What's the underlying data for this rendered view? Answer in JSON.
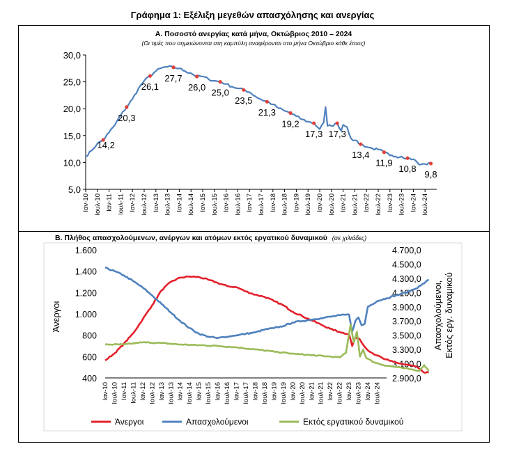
{
  "title": "Γράφημα 1: Εξέλιξη μεγεθών απασχόλησης και ανεργίας",
  "chart_data": [
    {
      "type": "line",
      "title": "Α. Ποσοστό ανεργίας κατά μήνα, Οκτώβριος 2010 – 2024",
      "subtitle": "(Οι τιμές που σημειώνονται στη καμπύλη αναφέρονται στο μήνα Οκτώβριο κάθε έτους)",
      "xlabel": "",
      "ylabel": "",
      "ylim": [
        5,
        30
      ],
      "yticks": [
        "5,0",
        "10,0",
        "15,0",
        "20,0",
        "25,0",
        "30,0"
      ],
      "x_ticks": [
        "Ιαν-10",
        "Ιουλ-10",
        "Ιαν-11",
        "Ιουλ-11",
        "Ιαν-12",
        "Ιουλ-12",
        "Ιαν-13",
        "Ιουλ-13",
        "Ιαν-14",
        "Ιουλ-14",
        "Ιαν-15",
        "Ιουλ-15",
        "Ιαν-16",
        "Ιουλ-16",
        "Ιαν-17",
        "Ιουλ-17",
        "Ιαν-18",
        "Ιουλ-18",
        "Ιαν-19",
        "Ιουλ-19",
        "Ιαν-20",
        "Ιουλ-20",
        "Ιαν-21",
        "Ιουλ-21",
        "Ιαν-22",
        "Ιουλ-22",
        "Ιαν-23",
        "Ιουλ-23",
        "Ιαν-24",
        "Ιουλ-24"
      ],
      "grid": false,
      "legend": "none",
      "series": [
        {
          "color": "#4f81bd",
          "anchors": [
            {
              "x": 0,
              "y": 11.1
            },
            {
              "x": 3,
              "y": 12.2
            },
            {
              "x": 6,
              "y": 13.5
            },
            {
              "x": 9,
              "y": 14.2
            },
            {
              "x": 12,
              "y": 15.6
            },
            {
              "x": 15,
              "y": 17.0
            },
            {
              "x": 18,
              "y": 18.8
            },
            {
              "x": 21,
              "y": 20.3
            },
            {
              "x": 24,
              "y": 21.8
            },
            {
              "x": 27,
              "y": 23.7
            },
            {
              "x": 30,
              "y": 25.2
            },
            {
              "x": 33,
              "y": 26.1
            },
            {
              "x": 36,
              "y": 27.0
            },
            {
              "x": 39,
              "y": 27.6
            },
            {
              "x": 42,
              "y": 27.8
            },
            {
              "x": 45,
              "y": 27.7
            },
            {
              "x": 48,
              "y": 27.5
            },
            {
              "x": 51,
              "y": 27.0
            },
            {
              "x": 54,
              "y": 26.6
            },
            {
              "x": 57,
              "y": 26.0
            },
            {
              "x": 60,
              "y": 26.0
            },
            {
              "x": 63,
              "y": 25.5
            },
            {
              "x": 66,
              "y": 25.2
            },
            {
              "x": 69,
              "y": 25.0
            },
            {
              "x": 72,
              "y": 24.6
            },
            {
              "x": 75,
              "y": 24.1
            },
            {
              "x": 78,
              "y": 23.8
            },
            {
              "x": 81,
              "y": 23.5
            },
            {
              "x": 84,
              "y": 23.1
            },
            {
              "x": 87,
              "y": 22.3
            },
            {
              "x": 90,
              "y": 21.7
            },
            {
              "x": 93,
              "y": 21.3
            },
            {
              "x": 96,
              "y": 20.8
            },
            {
              "x": 99,
              "y": 20.1
            },
            {
              "x": 102,
              "y": 19.6
            },
            {
              "x": 105,
              "y": 19.2
            },
            {
              "x": 108,
              "y": 18.6
            },
            {
              "x": 111,
              "y": 18.0
            },
            {
              "x": 114,
              "y": 17.6
            },
            {
              "x": 117,
              "y": 17.3
            },
            {
              "x": 120,
              "y": 16.2
            },
            {
              "x": 122,
              "y": 17.4
            },
            {
              "x": 123,
              "y": 20.3
            },
            {
              "x": 124,
              "y": 16.8
            },
            {
              "x": 126,
              "y": 16.8
            },
            {
              "x": 129,
              "y": 17.3
            },
            {
              "x": 131,
              "y": 15.9
            },
            {
              "x": 132,
              "y": 17.0
            },
            {
              "x": 134,
              "y": 16.6
            },
            {
              "x": 136,
              "y": 14.5
            },
            {
              "x": 138,
              "y": 14.1
            },
            {
              "x": 141,
              "y": 13.4
            },
            {
              "x": 144,
              "y": 12.9
            },
            {
              "x": 147,
              "y": 12.6
            },
            {
              "x": 150,
              "y": 12.4
            },
            {
              "x": 153,
              "y": 11.9
            },
            {
              "x": 156,
              "y": 11.3
            },
            {
              "x": 159,
              "y": 11.1
            },
            {
              "x": 162,
              "y": 11.1
            },
            {
              "x": 165,
              "y": 10.8
            },
            {
              "x": 168,
              "y": 10.6
            },
            {
              "x": 170,
              "y": 10.0
            },
            {
              "x": 171,
              "y": 9.6
            },
            {
              "x": 174,
              "y": 9.7
            },
            {
              "x": 177,
              "y": 9.8
            }
          ]
        }
      ],
      "annotations": [
        {
          "x": 9,
          "y": 14.2,
          "label": "14,2"
        },
        {
          "x": 21,
          "y": 20.3,
          "label": "20,3"
        },
        {
          "x": 33,
          "y": 26.1,
          "label": "26,1"
        },
        {
          "x": 45,
          "y": 27.7,
          "label": "27,7"
        },
        {
          "x": 57,
          "y": 26.0,
          "label": "26,0"
        },
        {
          "x": 69,
          "y": 25.0,
          "label": "25,0"
        },
        {
          "x": 81,
          "y": 23.5,
          "label": "23,5"
        },
        {
          "x": 93,
          "y": 21.3,
          "label": "21,3"
        },
        {
          "x": 105,
          "y": 19.2,
          "label": "19,2"
        },
        {
          "x": 117,
          "y": 17.3,
          "label": "17,3"
        },
        {
          "x": 129,
          "y": 17.3,
          "label": "17,3"
        },
        {
          "x": 141,
          "y": 13.4,
          "label": "13,4"
        },
        {
          "x": 153,
          "y": 11.9,
          "label": "11,9"
        },
        {
          "x": 165,
          "y": 10.8,
          "label": "10,8"
        },
        {
          "x": 177,
          "y": 9.8,
          "label": "9,8"
        }
      ],
      "marker_color": "#e0403a"
    },
    {
      "type": "line",
      "title": "Β. Πλήθος απασχολούμενων, ανέργων και ατόμων εκτός εργατικού δυναμικού",
      "title_note": "(σε χιλιάδες)",
      "ylabel": "Άνεργοι",
      "y2label": "Απασχολούμενοι, Εκτός εργ. δυναμικού",
      "ylim": [
        400,
        1600
      ],
      "y2lim": [
        2900,
        4700
      ],
      "yticks": [
        "400",
        "600",
        "800",
        "1.000",
        "1.200",
        "1.400",
        "1.600"
      ],
      "y2ticks": [
        "2.900,0",
        "3.100,0",
        "3.300,0",
        "3.500,0",
        "3.700,0",
        "3.900,0",
        "4.100,0",
        "4.300,0",
        "4.500,0",
        "4.700,0"
      ],
      "x_ticks": [
        "Ιαν-10",
        "Ιουλ-10",
        "Ιαν-11",
        "Ιουλ-11",
        "Ιαν-12",
        "Ιουλ-12",
        "Ιαν-13",
        "Ιουλ-13",
        "Ιαν-14",
        "Ιουλ-14",
        "Ιαν-15",
        "Ιουλ-15",
        "Ιαν-16",
        "Ιουλ-16",
        "Ιαν-17",
        "Ιουλ-17",
        "Ιαν-18",
        "Ιουλ-18",
        "Ιαν-19",
        "Ιουλ-19",
        "Ιαν-20",
        "Ιουλ-20",
        "Ιαν-21",
        "Ιουλ-21",
        "Ιαν-22",
        "Ιουλ-22",
        "Ιαν-23",
        "Ιουλ-23",
        "Ιαν-24",
        "Ιουλ-24"
      ],
      "grid": false,
      "legend": "bottom",
      "series": [
        {
          "name": "Άνεργοι",
          "axis": "left",
          "color": "#e3202b",
          "anchors": [
            {
              "x": 0,
              "y": 565
            },
            {
              "x": 6,
              "y": 630
            },
            {
              "x": 12,
              "y": 720
            },
            {
              "x": 18,
              "y": 820
            },
            {
              "x": 24,
              "y": 950
            },
            {
              "x": 30,
              "y": 1080
            },
            {
              "x": 36,
              "y": 1220
            },
            {
              "x": 42,
              "y": 1300
            },
            {
              "x": 48,
              "y": 1340
            },
            {
              "x": 54,
              "y": 1350
            },
            {
              "x": 60,
              "y": 1345
            },
            {
              "x": 66,
              "y": 1320
            },
            {
              "x": 72,
              "y": 1290
            },
            {
              "x": 78,
              "y": 1260
            },
            {
              "x": 84,
              "y": 1250
            },
            {
              "x": 90,
              "y": 1210
            },
            {
              "x": 96,
              "y": 1180
            },
            {
              "x": 102,
              "y": 1160
            },
            {
              "x": 108,
              "y": 1120
            },
            {
              "x": 114,
              "y": 1080
            },
            {
              "x": 120,
              "y": 1020
            },
            {
              "x": 126,
              "y": 980
            },
            {
              "x": 132,
              "y": 940
            },
            {
              "x": 138,
              "y": 900
            },
            {
              "x": 144,
              "y": 860
            },
            {
              "x": 150,
              "y": 830
            },
            {
              "x": 156,
              "y": 810
            },
            {
              "x": 158,
              "y": 700
            },
            {
              "x": 160,
              "y": 780
            },
            {
              "x": 163,
              "y": 760
            },
            {
              "x": 166,
              "y": 690
            },
            {
              "x": 170,
              "y": 640
            },
            {
              "x": 174,
              "y": 610
            },
            {
              "x": 178,
              "y": 580
            },
            {
              "x": 182,
              "y": 560
            },
            {
              "x": 186,
              "y": 545
            },
            {
              "x": 190,
              "y": 530
            },
            {
              "x": 194,
              "y": 520
            },
            {
              "x": 198,
              "y": 510
            },
            {
              "x": 201,
              "y": 485
            },
            {
              "x": 204,
              "y": 450
            },
            {
              "x": 207,
              "y": 450
            }
          ]
        },
        {
          "name": "Απασχολούμενοι",
          "axis": "right",
          "color": "#4f81bd",
          "anchors": [
            {
              "x": 0,
              "y": 4450
            },
            {
              "x": 6,
              "y": 4400
            },
            {
              "x": 12,
              "y": 4340
            },
            {
              "x": 18,
              "y": 4260
            },
            {
              "x": 24,
              "y": 4170
            },
            {
              "x": 30,
              "y": 4060
            },
            {
              "x": 36,
              "y": 3940
            },
            {
              "x": 42,
              "y": 3820
            },
            {
              "x": 48,
              "y": 3700
            },
            {
              "x": 54,
              "y": 3600
            },
            {
              "x": 60,
              "y": 3520
            },
            {
              "x": 66,
              "y": 3480
            },
            {
              "x": 72,
              "y": 3460
            },
            {
              "x": 78,
              "y": 3480
            },
            {
              "x": 84,
              "y": 3500
            },
            {
              "x": 90,
              "y": 3520
            },
            {
              "x": 96,
              "y": 3540
            },
            {
              "x": 102,
              "y": 3580
            },
            {
              "x": 108,
              "y": 3600
            },
            {
              "x": 114,
              "y": 3630
            },
            {
              "x": 120,
              "y": 3680
            },
            {
              "x": 126,
              "y": 3700
            },
            {
              "x": 132,
              "y": 3720
            },
            {
              "x": 138,
              "y": 3740
            },
            {
              "x": 144,
              "y": 3760
            },
            {
              "x": 150,
              "y": 3780
            },
            {
              "x": 156,
              "y": 3790
            },
            {
              "x": 158,
              "y": 3550
            },
            {
              "x": 160,
              "y": 3700
            },
            {
              "x": 162,
              "y": 3750
            },
            {
              "x": 164,
              "y": 3640
            },
            {
              "x": 166,
              "y": 3660
            },
            {
              "x": 168,
              "y": 3900
            },
            {
              "x": 174,
              "y": 3980
            },
            {
              "x": 180,
              "y": 4020
            },
            {
              "x": 186,
              "y": 4060
            },
            {
              "x": 192,
              "y": 4100
            },
            {
              "x": 198,
              "y": 4150
            },
            {
              "x": 202,
              "y": 4200
            },
            {
              "x": 205,
              "y": 4250
            },
            {
              "x": 207,
              "y": 4280
            }
          ]
        },
        {
          "name": "Εκτός εργατικού δυναμικού",
          "axis": "right",
          "color": "#9bbb59",
          "anchors": [
            {
              "x": 0,
              "y": 3370
            },
            {
              "x": 12,
              "y": 3370
            },
            {
              "x": 24,
              "y": 3400
            },
            {
              "x": 36,
              "y": 3390
            },
            {
              "x": 48,
              "y": 3370
            },
            {
              "x": 60,
              "y": 3360
            },
            {
              "x": 72,
              "y": 3350
            },
            {
              "x": 84,
              "y": 3330
            },
            {
              "x": 96,
              "y": 3300
            },
            {
              "x": 108,
              "y": 3270
            },
            {
              "x": 120,
              "y": 3240
            },
            {
              "x": 132,
              "y": 3220
            },
            {
              "x": 144,
              "y": 3200
            },
            {
              "x": 150,
              "y": 3190
            },
            {
              "x": 154,
              "y": 3250
            },
            {
              "x": 157,
              "y": 3650
            },
            {
              "x": 159,
              "y": 3400
            },
            {
              "x": 161,
              "y": 3550
            },
            {
              "x": 163,
              "y": 3200
            },
            {
              "x": 165,
              "y": 3300
            },
            {
              "x": 167,
              "y": 3180
            },
            {
              "x": 172,
              "y": 3120
            },
            {
              "x": 178,
              "y": 3080
            },
            {
              "x": 184,
              "y": 3060
            },
            {
              "x": 190,
              "y": 3040
            },
            {
              "x": 196,
              "y": 3020
            },
            {
              "x": 201,
              "y": 3000
            },
            {
              "x": 204,
              "y": 3080
            },
            {
              "x": 207,
              "y": 3000
            }
          ]
        }
      ]
    }
  ]
}
